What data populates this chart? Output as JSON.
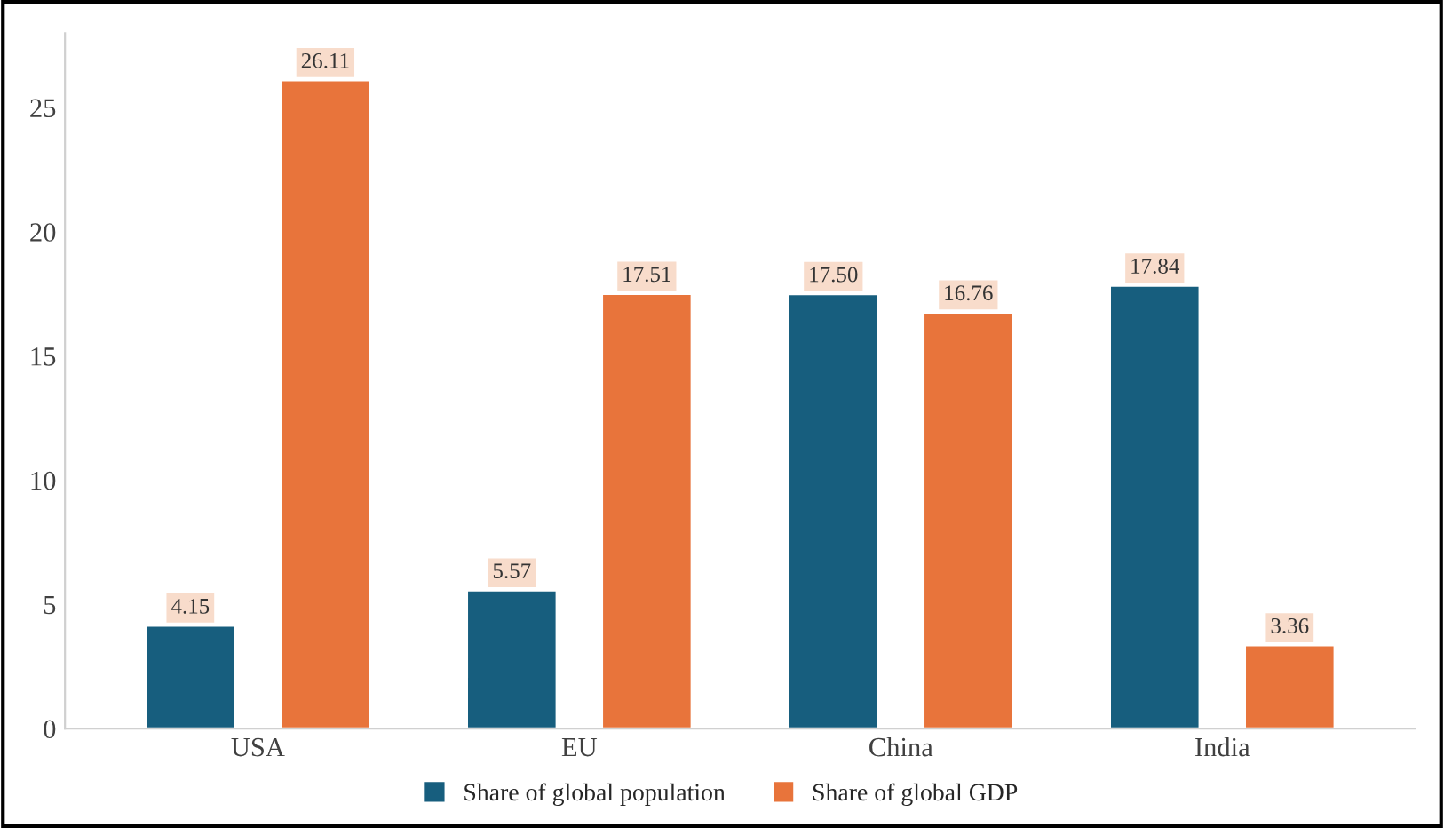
{
  "chart_data": {
    "type": "bar",
    "categories": [
      "USA",
      "EU",
      "China",
      "India"
    ],
    "series": [
      {
        "name": "Share of global population",
        "color": "#175e7e",
        "values": [
          4.15,
          5.57,
          17.5,
          17.84
        ],
        "value_labels": [
          "4.15",
          "5.57",
          "17.50",
          "17.84"
        ]
      },
      {
        "name": "Share of global GDP",
        "color": "#e8743b",
        "values": [
          26.11,
          17.51,
          16.76,
          3.36
        ],
        "value_labels": [
          "26.11",
          "17.51",
          "16.76",
          "3.36"
        ]
      }
    ],
    "ylim": [
      0,
      28
    ],
    "yticks": [
      0,
      5,
      10,
      15,
      20,
      25
    ],
    "grid": false,
    "legend": "bottom"
  }
}
